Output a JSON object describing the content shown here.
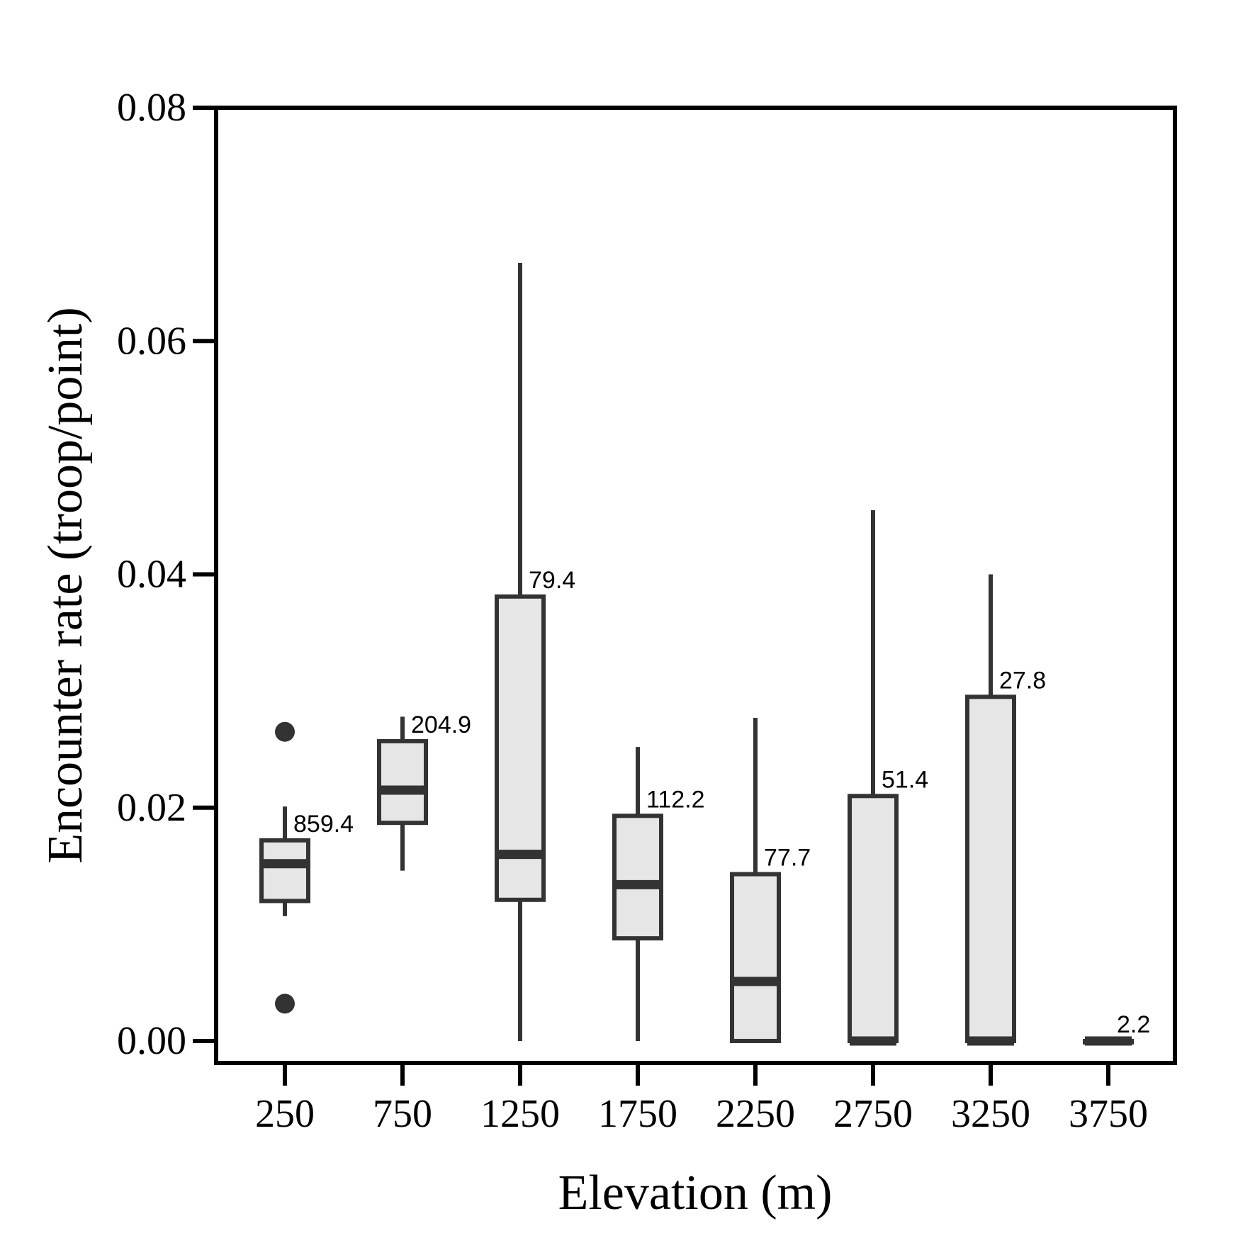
{
  "chart_data": {
    "type": "boxplot",
    "xlabel": "Elevation (m)",
    "ylabel": "Encounter rate (troop/point)",
    "ylim": [
      0,
      0.08
    ],
    "yticks": [
      "0.00",
      "0.02",
      "0.04",
      "0.06",
      "0.08"
    ],
    "ytick_values": [
      0,
      0.02,
      0.04,
      0.06,
      0.08
    ],
    "categories": [
      "250",
      "750",
      "1250",
      "1750",
      "2250",
      "2750",
      "3250",
      "3750"
    ],
    "boxes": [
      {
        "category": "250",
        "whisker_low": 0.0107,
        "q1": 0.012,
        "median": 0.0152,
        "q3": 0.0172,
        "whisker_high": 0.0201,
        "outliers": [
          0.0265,
          0.0032
        ],
        "label": "859.4"
      },
      {
        "category": "750",
        "whisker_low": 0.0146,
        "q1": 0.0187,
        "median": 0.0215,
        "q3": 0.0257,
        "whisker_high": 0.0278,
        "outliers": [],
        "label": "204.9"
      },
      {
        "category": "1250",
        "whisker_low": 0.0,
        "q1": 0.0121,
        "median": 0.016,
        "q3": 0.0381,
        "whisker_high": 0.0667,
        "outliers": [],
        "label": "79.4"
      },
      {
        "category": "1750",
        "whisker_low": 0.0,
        "q1": 0.0088,
        "median": 0.0134,
        "q3": 0.0193,
        "whisker_high": 0.0252,
        "outliers": [],
        "label": "112.2"
      },
      {
        "category": "2250",
        "whisker_low": 0.0,
        "q1": 0.0,
        "median": 0.0051,
        "q3": 0.0143,
        "whisker_high": 0.0277,
        "outliers": [],
        "label": "77.7"
      },
      {
        "category": "2750",
        "whisker_low": 0.0,
        "q1": 0.0,
        "median": 0.0,
        "q3": 0.021,
        "whisker_high": 0.0455,
        "outliers": [],
        "label": "51.4"
      },
      {
        "category": "3250",
        "whisker_low": 0.0,
        "q1": 0.0,
        "median": 0.0,
        "q3": 0.0295,
        "whisker_high": 0.04,
        "outliers": [],
        "label": "27.8"
      },
      {
        "category": "3750",
        "whisker_low": 0.0,
        "q1": 0.0,
        "median": 0.0,
        "q3": 0.0,
        "whisker_high": 0.0,
        "outliers": [],
        "label": "2.2"
      }
    ],
    "colors": {
      "box_fill": "#e6e6e6",
      "stroke": "#333333"
    },
    "grid": false,
    "legend": "none"
  }
}
